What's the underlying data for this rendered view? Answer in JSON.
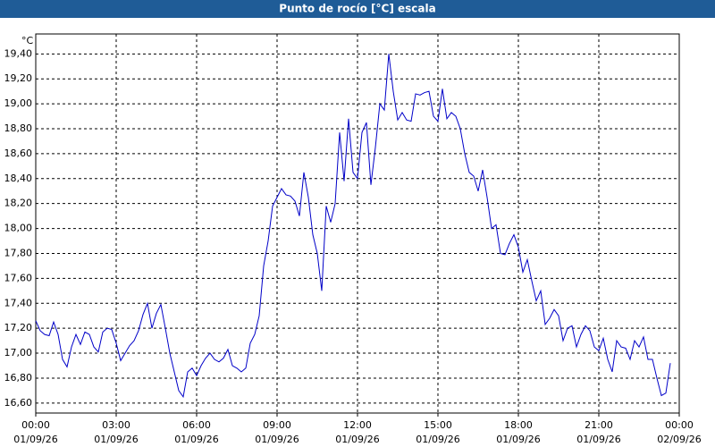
{
  "chart_data": {
    "type": "line",
    "title": "Punto de rocío [°C] escala",
    "y_unit": "°C",
    "x": [
      0,
      10,
      20,
      30,
      40,
      50,
      60,
      70,
      80,
      90,
      100,
      110,
      120,
      130,
      140,
      150,
      160,
      170,
      180,
      190,
      200,
      210,
      220,
      230,
      240,
      250,
      260,
      270,
      280,
      290,
      300,
      310,
      320,
      330,
      340,
      350,
      360,
      370,
      380,
      390,
      400,
      410,
      420,
      430,
      440,
      450,
      460,
      470,
      480,
      490,
      500,
      510,
      520,
      530,
      540,
      550,
      560,
      570,
      580,
      590,
      600,
      610,
      620,
      630,
      640,
      650,
      660,
      670,
      680,
      690,
      700,
      710,
      720,
      730,
      740,
      750,
      760,
      770,
      780,
      790,
      800,
      810,
      820,
      830,
      840,
      850,
      860,
      870,
      880,
      890,
      900,
      910,
      920,
      930,
      940,
      950,
      960,
      970,
      980,
      990,
      1000,
      1010,
      1020,
      1030,
      1040,
      1050,
      1060,
      1070,
      1080,
      1090,
      1100,
      1110,
      1120,
      1130,
      1140,
      1150,
      1160,
      1170,
      1180,
      1190,
      1200,
      1210,
      1220,
      1230,
      1240,
      1250,
      1260,
      1270,
      1280,
      1290,
      1300,
      1310,
      1320,
      1330,
      1340,
      1350,
      1360,
      1370,
      1380,
      1390,
      1400,
      1410,
      1420
    ],
    "series": [
      {
        "color": "#0000c8",
        "values": [
          17.26,
          17.18,
          17.15,
          17.14,
          17.25,
          17.15,
          16.95,
          16.89,
          17.05,
          17.15,
          17.07,
          17.17,
          17.15,
          17.05,
          17.01,
          17.17,
          17.2,
          17.19,
          17.08,
          16.94,
          17.0,
          17.06,
          17.1,
          17.18,
          17.31,
          17.4,
          17.2,
          17.32,
          17.39,
          17.2,
          17.0,
          16.85,
          16.7,
          16.65,
          16.85,
          16.88,
          16.82,
          16.9,
          16.96,
          17.0,
          16.95,
          16.93,
          16.96,
          17.03,
          16.9,
          16.88,
          16.85,
          16.88,
          17.08,
          17.15,
          17.3,
          17.7,
          17.9,
          18.18,
          18.25,
          18.32,
          18.27,
          18.26,
          18.22,
          18.1,
          18.45,
          18.25,
          17.95,
          17.8,
          17.5,
          18.18,
          18.05,
          18.2,
          18.77,
          18.38,
          18.88,
          18.45,
          18.4,
          18.77,
          18.85,
          18.35,
          18.65,
          19.0,
          18.95,
          19.4,
          19.1,
          18.87,
          18.93,
          18.87,
          18.86,
          19.08,
          19.07,
          19.09,
          19.1,
          18.9,
          18.86,
          19.12,
          18.88,
          18.93,
          18.9,
          18.8,
          18.6,
          18.45,
          18.42,
          18.3,
          18.47,
          18.25,
          18.0,
          18.03,
          17.8,
          17.79,
          17.88,
          17.95,
          17.85,
          17.65,
          17.75,
          17.58,
          17.42,
          17.5,
          17.23,
          17.28,
          17.35,
          17.3,
          17.1,
          17.2,
          17.22,
          17.05,
          17.15,
          17.22,
          17.18,
          17.05,
          17.02,
          17.12,
          16.95,
          16.85,
          17.1,
          17.05,
          17.04,
          16.95,
          17.1,
          17.05,
          17.13,
          16.95,
          16.95,
          16.8,
          16.66,
          16.68,
          16.92
        ]
      }
    ],
    "xlim": [
      0,
      1440
    ],
    "xticks": [
      {
        "value": 0,
        "label": "00:00"
      },
      {
        "value": 180,
        "label": "03:00"
      },
      {
        "value": 360,
        "label": "06:00"
      },
      {
        "value": 540,
        "label": "09:00"
      },
      {
        "value": 720,
        "label": "12:00"
      },
      {
        "value": 900,
        "label": "15:00"
      },
      {
        "value": 1080,
        "label": "18:00"
      },
      {
        "value": 1260,
        "label": "21:00"
      },
      {
        "value": 1440,
        "label": "00:00"
      }
    ],
    "xtick_dates": [
      "01/09/26",
      "01/09/26",
      "01/09/26",
      "01/09/26",
      "01/09/26",
      "01/09/26",
      "01/09/26",
      "01/09/26",
      "02/09/26"
    ],
    "ylim": [
      16.52,
      19.56
    ],
    "yticks": [
      {
        "value": 16.6,
        "label": "16,60"
      },
      {
        "value": 16.8,
        "label": "16,80"
      },
      {
        "value": 17.0,
        "label": "17,00"
      },
      {
        "value": 17.2,
        "label": "17,20"
      },
      {
        "value": 17.4,
        "label": "17,40"
      },
      {
        "value": 17.6,
        "label": "17,60"
      },
      {
        "value": 17.8,
        "label": "17,80"
      },
      {
        "value": 18.0,
        "label": "18,00"
      },
      {
        "value": 18.2,
        "label": "18,20"
      },
      {
        "value": 18.4,
        "label": "18,40"
      },
      {
        "value": 18.6,
        "label": "18,60"
      },
      {
        "value": 18.8,
        "label": "18,80"
      },
      {
        "value": 19.0,
        "label": "19,00"
      },
      {
        "value": 19.2,
        "label": "19,20"
      },
      {
        "value": 19.4,
        "label": "19,40"
      }
    ],
    "grid": true
  }
}
